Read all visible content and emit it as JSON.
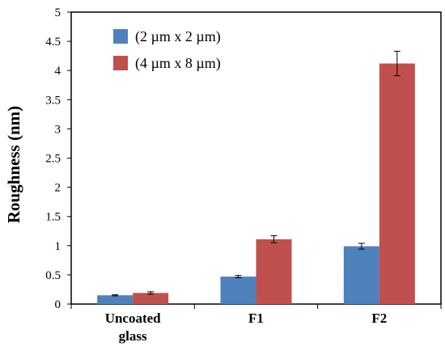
{
  "chart_data": {
    "type": "bar",
    "categories": [
      [
        "Uncoated",
        "glass"
      ],
      [
        "F1"
      ],
      [
        "F2"
      ]
    ],
    "series": [
      {
        "name": "(2 µm x 2 µm)",
        "color": "#4F81BD",
        "values": [
          0.15,
          0.47,
          0.99
        ],
        "errors": [
          0.01,
          0.02,
          0.05
        ]
      },
      {
        "name": "(4 µm x 8 µm)",
        "color": "#C0504D",
        "values": [
          0.19,
          1.11,
          4.12
        ],
        "errors": [
          0.02,
          0.06,
          0.21
        ]
      }
    ],
    "xlabel": "",
    "ylabel": "Roughness (nm)",
    "ylim": [
      0,
      5
    ],
    "yticks": [
      "0",
      "0.5",
      "1",
      "1.5",
      "2",
      "2.5",
      "3",
      "3.5",
      "4",
      "4.5",
      "5"
    ],
    "grid": false,
    "legend_position": "top-left"
  }
}
